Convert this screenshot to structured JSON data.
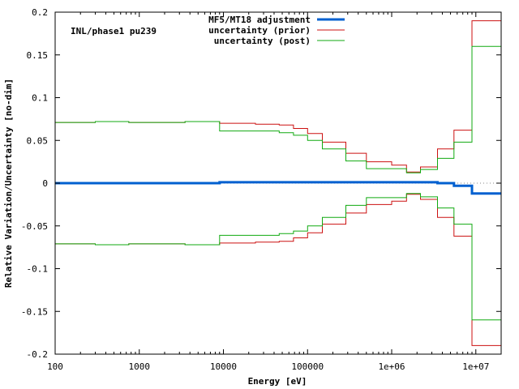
{
  "chart_data": {
    "type": "line",
    "step": true,
    "annotation": "INL/phase1 pu239",
    "xlabel": "Energy [eV]",
    "ylabel": "Relative Variation/Uncertainty [no-dim]",
    "xscale": "log",
    "xlim": [
      100,
      20000000
    ],
    "ylim": [
      -0.2,
      0.2
    ],
    "x_ticks": [
      {
        "value": 100,
        "label": "100"
      },
      {
        "value": 1000,
        "label": "1000"
      },
      {
        "value": 10000,
        "label": "10000"
      },
      {
        "value": 100000,
        "label": "100000"
      },
      {
        "value": 1000000,
        "label": "1e+06"
      },
      {
        "value": 10000000,
        "label": "1e+07"
      }
    ],
    "y_ticks": [
      {
        "value": 0.2,
        "label": "0.2"
      },
      {
        "value": 0.15,
        "label": "0.15"
      },
      {
        "value": 0.1,
        "label": "0.1"
      },
      {
        "value": 0.05,
        "label": "0.05"
      },
      {
        "value": 0,
        "label": "0"
      },
      {
        "value": -0.05,
        "label": "-0.05"
      },
      {
        "value": -0.1,
        "label": "-0.1"
      },
      {
        "value": -0.15,
        "label": "-0.15"
      },
      {
        "value": -0.2,
        "label": "-0.2"
      }
    ],
    "zero_line": true,
    "legend_position": "top-right",
    "bin_edges": [
      100,
      300,
      750,
      3500,
      9000,
      24000,
      46000,
      68000,
      100000,
      150000,
      285000,
      500000,
      1000000,
      1500000,
      2200000,
      3500000,
      5500000,
      9000000,
      20000000
    ],
    "series": [
      {
        "name": "MF5/MT18 adjustment",
        "color": "#0060d0",
        "width": 3,
        "mirror": false,
        "values": [
          0,
          0,
          0,
          0,
          0.001,
          0.001,
          0.001,
          0.001,
          0.001,
          0.001,
          0.001,
          0.001,
          0.001,
          0.001,
          0.001,
          0,
          -0.003,
          -0.012
        ]
      },
      {
        "name": "uncertainty (prior)",
        "color": "#cc1111",
        "width": 1,
        "mirror": true,
        "values": [
          0.071,
          0.072,
          0.071,
          0.072,
          0.07,
          0.069,
          0.068,
          0.064,
          0.058,
          0.048,
          0.035,
          0.025,
          0.021,
          0.013,
          0.019,
          0.04,
          0.062,
          0.19
        ]
      },
      {
        "name": "uncertainty (post)",
        "color": "#11aa11",
        "width": 1,
        "mirror": true,
        "values": [
          0.071,
          0.072,
          0.071,
          0.072,
          0.061,
          0.061,
          0.059,
          0.056,
          0.05,
          0.04,
          0.026,
          0.017,
          0.017,
          0.012,
          0.016,
          0.029,
          0.048,
          0.16
        ]
      }
    ]
  }
}
